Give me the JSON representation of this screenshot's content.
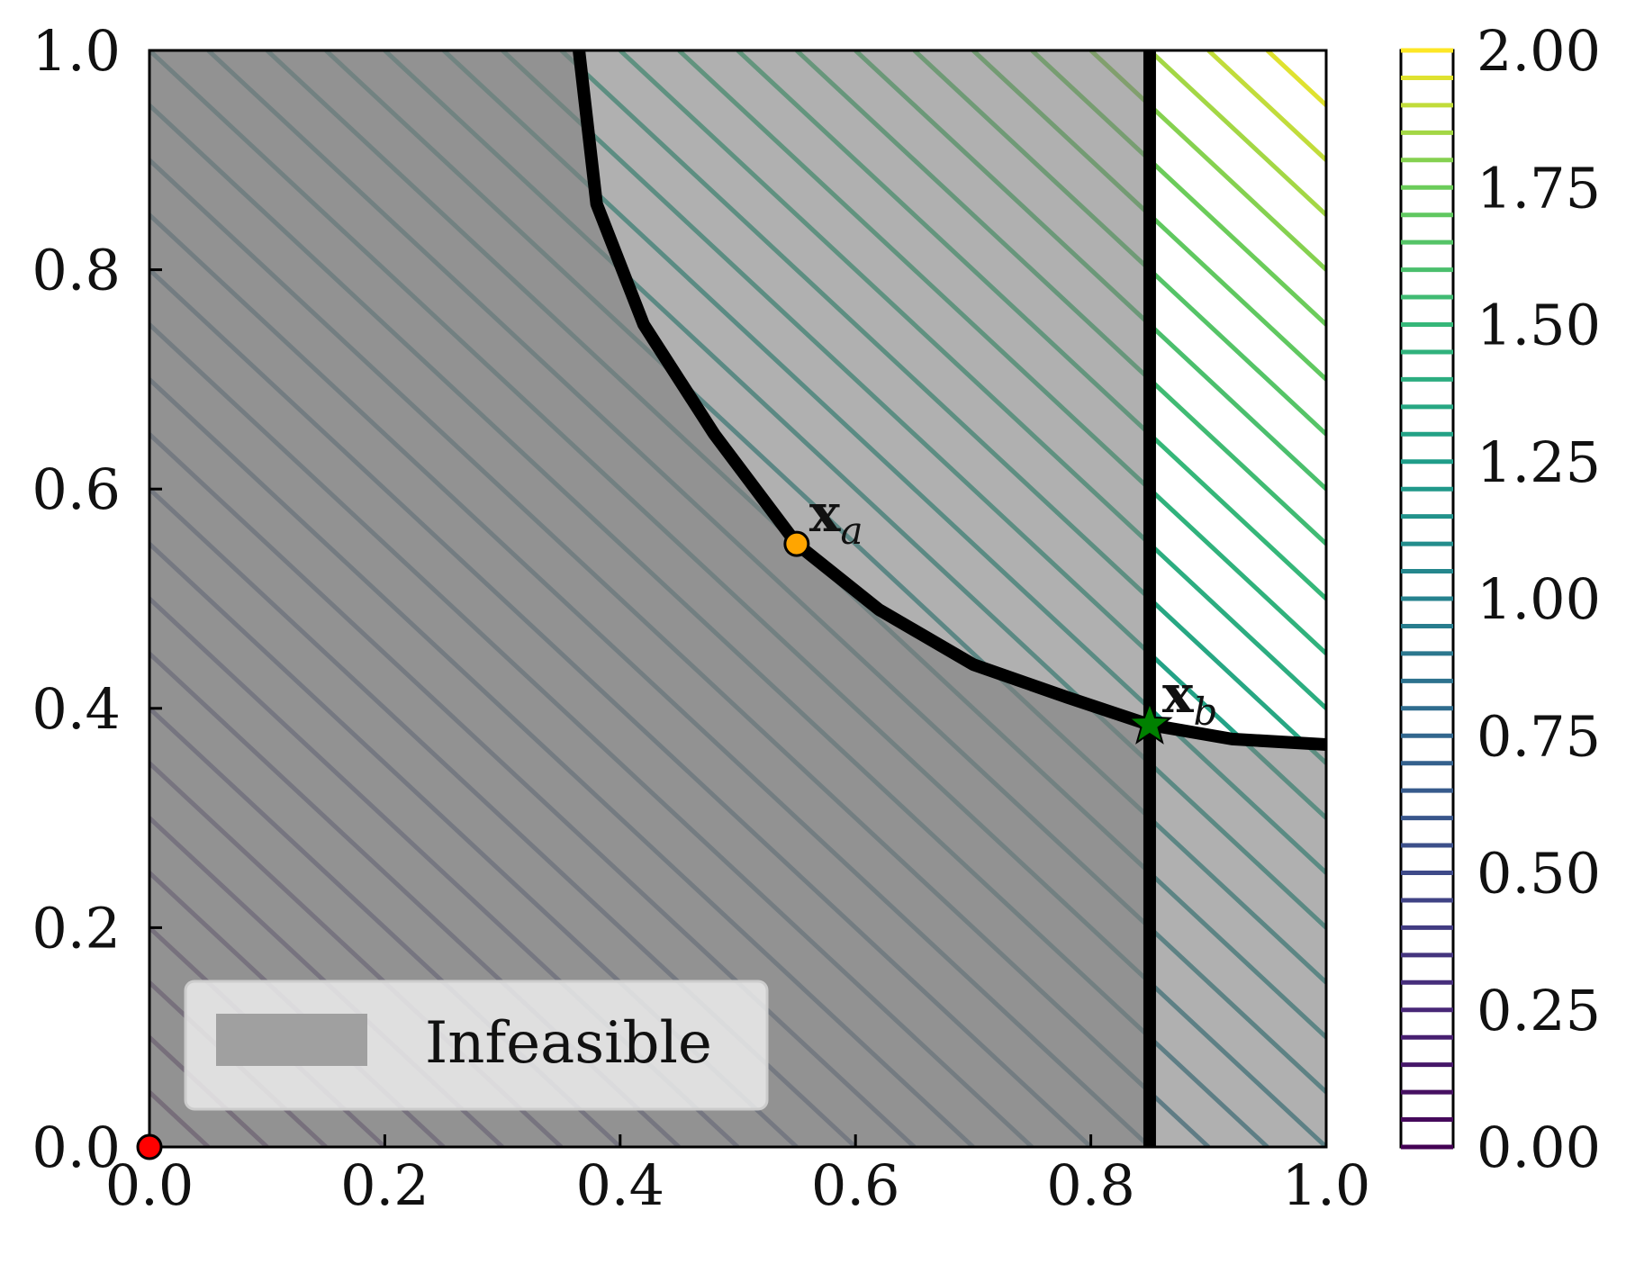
{
  "chart_data": {
    "type": "contour",
    "description_visible": "filled contour plot of objective over unit square with infeasible shaded regions",
    "xlim": [
      0.0,
      1.0
    ],
    "ylim": [
      0.0,
      1.0
    ],
    "x_ticks": [
      "0.0",
      "0.2",
      "0.4",
      "0.6",
      "0.8",
      "1.0"
    ],
    "y_ticks": [
      "0.0",
      "0.2",
      "0.4",
      "0.6",
      "0.8",
      "1.0"
    ],
    "x_tick_values": [
      0.0,
      0.2,
      0.4,
      0.6,
      0.8,
      1.0
    ],
    "y_tick_values": [
      0.0,
      0.2,
      0.4,
      0.6,
      0.8,
      1.0
    ],
    "colorbar": {
      "range": [
        0.0,
        2.0
      ],
      "ticks": [
        "0.00",
        "0.25",
        "0.50",
        "0.75",
        "1.00",
        "1.25",
        "1.50",
        "1.75",
        "2.00"
      ],
      "tick_values": [
        0.0,
        0.25,
        0.5,
        0.75,
        1.0,
        1.25,
        1.5,
        1.75,
        2.0
      ],
      "levels": 40,
      "colormap": "viridis"
    },
    "contour_function": "x + y",
    "constraints": {
      "vertical_line_x": 0.85,
      "curve_points": [
        [
          0.365,
          1.0
        ],
        [
          0.38,
          0.86
        ],
        [
          0.42,
          0.75
        ],
        [
          0.48,
          0.65
        ],
        [
          0.55,
          0.55
        ],
        [
          0.62,
          0.49
        ],
        [
          0.7,
          0.44
        ],
        [
          0.78,
          0.41
        ],
        [
          0.85,
          0.385
        ],
        [
          0.92,
          0.372
        ],
        [
          1.0,
          0.367
        ]
      ]
    },
    "points": [
      {
        "label_main": "x",
        "label_sub": "a",
        "x": 0.55,
        "y": 0.55,
        "marker": "circle",
        "color": "#ffa500"
      },
      {
        "label_main": "x",
        "label_sub": "b",
        "x": 0.85,
        "y": 0.385,
        "marker": "star",
        "color": "#008000"
      },
      {
        "label_main": "",
        "label_sub": "",
        "x": 0.0,
        "y": 0.0,
        "marker": "circle",
        "color": "#ff0000"
      }
    ],
    "legend": {
      "entries": [
        "Infeasible"
      ],
      "placement": "lower-left"
    },
    "colors": {
      "infeasible_fill": "#808080",
      "axes_edge": "#000000",
      "constraint_line": "#000000"
    }
  }
}
